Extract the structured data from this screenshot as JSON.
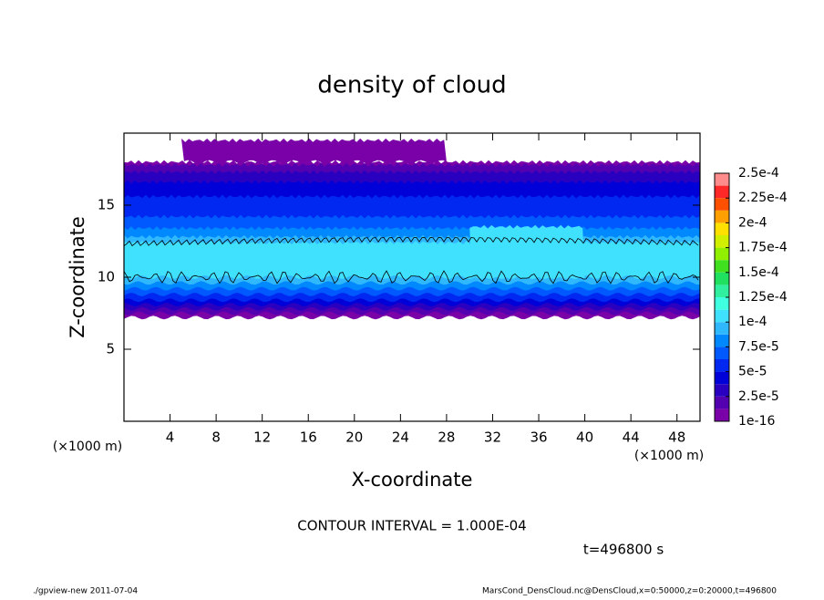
{
  "chart_data": {
    "type": "contour",
    "title": "density of cloud",
    "x_label": "X-coordinate",
    "y_label": "Z-coordinate",
    "x_unit_left": "(×1000 m)",
    "x_unit_right": "(×1000 m)",
    "contour_note": "CONTOUR INTERVAL = 1.000E-04",
    "time_note": "t=496800 s",
    "footer_left": "./gpview-new  2011-07-04",
    "footer_right": "MarsCond_DensCloud.nc@DensCloud,x=0:50000,z=0:20000,t=496800",
    "xlim": [
      0,
      50
    ],
    "xticks": [
      4,
      8,
      12,
      16,
      20,
      24,
      28,
      32,
      36,
      40,
      44,
      48
    ],
    "ylim": [
      0,
      20
    ],
    "yticks": [
      5,
      10,
      15
    ],
    "colorbar": {
      "levels": [
        1e-16,
        1.25e-05,
        2.5e-05,
        3.75e-05,
        5e-05,
        6.25e-05,
        7.5e-05,
        8.75e-05,
        0.0001,
        0.0001125,
        0.000125,
        0.0001375,
        0.00015,
        0.0001625,
        0.000175,
        0.0001875,
        0.0002,
        0.0002125,
        0.000225,
        0.0002375,
        0.00025
      ],
      "colors": [
        "#7a00a8",
        "#5200b0",
        "#2a00c0",
        "#0000d8",
        "#0028f0",
        "#0058ff",
        "#0088ff",
        "#30b8ff",
        "#40e0ff",
        "#40ffe0",
        "#30f0a0",
        "#20e060",
        "#40e020",
        "#90f000",
        "#d0f000",
        "#ffe000",
        "#ffa000",
        "#ff5000",
        "#ff2828",
        "#ff8c8c"
      ],
      "ticks": [
        {
          "value": 1e-16,
          "label": "1e-16"
        },
        {
          "value": 2.5e-05,
          "label": "2.5e-5"
        },
        {
          "value": 5e-05,
          "label": "5e-5"
        },
        {
          "value": 7.5e-05,
          "label": "7.5e-5"
        },
        {
          "value": 0.0001,
          "label": "1e-4"
        },
        {
          "value": 0.000125,
          "label": "1.25e-4"
        },
        {
          "value": 0.00015,
          "label": "1.5e-4"
        },
        {
          "value": 0.000175,
          "label": "1.75e-4"
        },
        {
          "value": 0.0002,
          "label": "2e-4"
        },
        {
          "value": 0.000225,
          "label": "2.25e-4"
        },
        {
          "value": 0.00025,
          "label": "2.5e-4"
        }
      ]
    },
    "layers": [
      {
        "value": 1e-16,
        "x": [
          0,
          50
        ],
        "z": [
          7.2,
          18
        ]
      },
      {
        "value": 1e-16,
        "x": [
          5,
          28
        ],
        "z": [
          18,
          19.5
        ]
      },
      {
        "value": 1.25e-05,
        "x": [
          0,
          50
        ],
        "z": [
          7.5,
          17.8
        ]
      },
      {
        "value": 2.5e-05,
        "x": [
          0,
          50
        ],
        "z": [
          7.8,
          17.3
        ]
      },
      {
        "value": 3.75e-05,
        "x": [
          0,
          50
        ],
        "z": [
          8.1,
          16.6
        ]
      },
      {
        "value": 5e-05,
        "x": [
          0,
          50
        ],
        "z": [
          8.4,
          15.6
        ]
      },
      {
        "value": 6.25e-05,
        "x": [
          0,
          50
        ],
        "z": [
          8.8,
          14.2
        ]
      },
      {
        "value": 7.5e-05,
        "x": [
          0,
          50
        ],
        "z": [
          9.2,
          13.4
        ]
      },
      {
        "value": 8.75e-05,
        "x": [
          0,
          50
        ],
        "z": [
          9.6,
          12.8
        ]
      },
      {
        "value": 0.0001,
        "x": [
          0,
          50
        ],
        "z": [
          10,
          12.4
        ]
      },
      {
        "value": 0.0001,
        "x": [
          30,
          40
        ],
        "z": [
          10,
          13.5
        ]
      }
    ],
    "contours": [
      {
        "value": 0.0001,
        "x": [
          0,
          50
        ],
        "z": [
          10,
          12.4
        ]
      }
    ]
  }
}
